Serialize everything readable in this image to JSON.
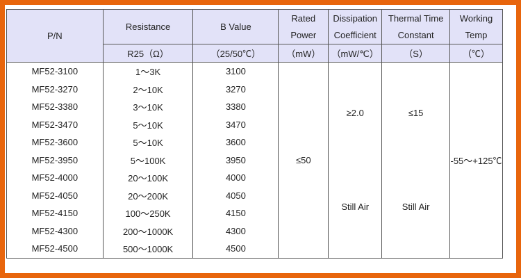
{
  "header": {
    "pn": "P/N",
    "resistance": "Resistance",
    "b_value": "B Value",
    "rated_power": [
      "Rated",
      "Power"
    ],
    "dissipation": [
      "Dissipation",
      "Coefficient"
    ],
    "thermal": [
      "Thermal Time",
      "Constant"
    ],
    "working": [
      "Working",
      "Temp"
    ],
    "units": {
      "resistance": "R25（Ω）",
      "b_value": "（25/50℃）",
      "rated_power": "（mW）",
      "dissipation": "（mW/℃）",
      "thermal": "（S）",
      "working": "（℃）"
    }
  },
  "rows": [
    {
      "pn": "MF52-3100",
      "res": "1～3K",
      "b": "3100"
    },
    {
      "pn": "MF52-3270",
      "res": "2～10K",
      "b": "3270"
    },
    {
      "pn": "MF52-3380",
      "res": "3～10K",
      "b": "3380"
    },
    {
      "pn": "MF52-3470",
      "res": "5～10K",
      "b": "3470"
    },
    {
      "pn": "MF52-3600",
      "res": "5～10K",
      "b": "3600"
    },
    {
      "pn": "MF52-3950",
      "res": "5～100K",
      "b": "3950"
    },
    {
      "pn": "MF52-4000",
      "res": "20～100K",
      "b": "4000"
    },
    {
      "pn": "MF52-4050",
      "res": "20～200K",
      "b": "4050"
    },
    {
      "pn": "MF52-4150",
      "res": "100～250K",
      "b": "4150"
    },
    {
      "pn": "MF52-4300",
      "res": "200～1000K",
      "b": "4300"
    },
    {
      "pn": "MF52-4500",
      "res": "500～1000K",
      "b": "4500"
    }
  ],
  "shared": {
    "rated_power": "≤50",
    "dissipation": [
      "≥2.0",
      "Still Air"
    ],
    "thermal": [
      "≤15",
      "Still Air"
    ],
    "working": "-55～+125℃"
  },
  "colors": {
    "border": "#e8650c",
    "header_bg": "#e2e2f8"
  }
}
